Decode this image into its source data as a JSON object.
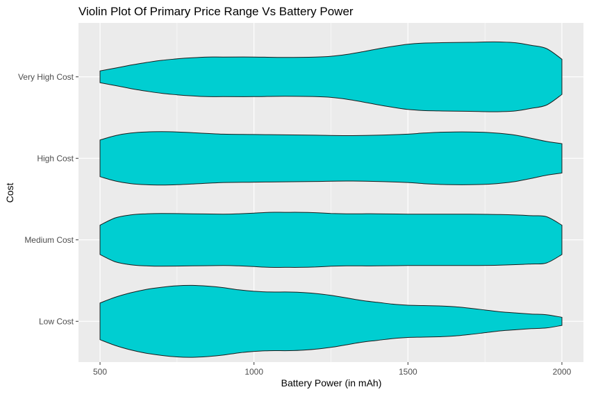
{
  "chart_data": {
    "type": "violin",
    "title": "Violin Plot Of Primary Price Range Vs Battery Power",
    "xlabel": "Battery Power (in mAh)",
    "ylabel": "Cost",
    "xlim": [
      430,
      2070
    ],
    "x_ticks": [
      500,
      1000,
      1500,
      2000
    ],
    "x_tick_labels": [
      "500",
      "1000",
      "1500",
      "2000"
    ],
    "categories": [
      "Low Cost",
      "Medium Cost",
      "High Cost",
      "Very High Cost"
    ],
    "fill_color": "#00CED1",
    "outline_color": "#1a1a1a",
    "panel_color": "#EBEBEB",
    "grid_color": "#FFFFFF",
    "grid": true,
    "legend": "none",
    "violins": [
      {
        "category": "Low Cost",
        "x_range": [
          501,
          1999
        ],
        "profile": [
          [
            500,
            0.5
          ],
          [
            550,
            0.66
          ],
          [
            600,
            0.78
          ],
          [
            650,
            0.87
          ],
          [
            700,
            0.93
          ],
          [
            750,
            0.97
          ],
          [
            800,
            0.98
          ],
          [
            850,
            0.96
          ],
          [
            900,
            0.92
          ],
          [
            950,
            0.86
          ],
          [
            1000,
            0.82
          ],
          [
            1050,
            0.8
          ],
          [
            1100,
            0.8
          ],
          [
            1150,
            0.79
          ],
          [
            1200,
            0.76
          ],
          [
            1250,
            0.71
          ],
          [
            1300,
            0.64
          ],
          [
            1350,
            0.57
          ],
          [
            1400,
            0.52
          ],
          [
            1450,
            0.47
          ],
          [
            1500,
            0.44
          ],
          [
            1550,
            0.43
          ],
          [
            1600,
            0.42
          ],
          [
            1650,
            0.4
          ],
          [
            1700,
            0.36
          ],
          [
            1750,
            0.31
          ],
          [
            1800,
            0.26
          ],
          [
            1850,
            0.23
          ],
          [
            1900,
            0.2
          ],
          [
            1950,
            0.18
          ],
          [
            2000,
            0.11
          ]
        ]
      },
      {
        "category": "Medium Cost",
        "x_range": [
          501,
          2000
        ],
        "profile": [
          [
            500,
            0.4
          ],
          [
            550,
            0.6
          ],
          [
            600,
            0.68
          ],
          [
            650,
            0.71
          ],
          [
            700,
            0.72
          ],
          [
            800,
            0.71
          ],
          [
            900,
            0.7
          ],
          [
            950,
            0.71
          ],
          [
            1000,
            0.73
          ],
          [
            1050,
            0.75
          ],
          [
            1100,
            0.75
          ],
          [
            1150,
            0.75
          ],
          [
            1200,
            0.74
          ],
          [
            1250,
            0.72
          ],
          [
            1300,
            0.71
          ],
          [
            1350,
            0.71
          ],
          [
            1400,
            0.71
          ],
          [
            1500,
            0.7
          ],
          [
            1600,
            0.7
          ],
          [
            1700,
            0.7
          ],
          [
            1800,
            0.69
          ],
          [
            1900,
            0.66
          ],
          [
            1950,
            0.63
          ],
          [
            2000,
            0.4
          ]
        ]
      },
      {
        "category": "High Cost",
        "x_range": [
          503,
          1999
        ],
        "profile": [
          [
            500,
            0.5
          ],
          [
            550,
            0.62
          ],
          [
            600,
            0.69
          ],
          [
            650,
            0.72
          ],
          [
            700,
            0.73
          ],
          [
            750,
            0.72
          ],
          [
            800,
            0.7
          ],
          [
            900,
            0.66
          ],
          [
            1000,
            0.65
          ],
          [
            1100,
            0.64
          ],
          [
            1200,
            0.63
          ],
          [
            1300,
            0.62
          ],
          [
            1400,
            0.63
          ],
          [
            1500,
            0.66
          ],
          [
            1550,
            0.69
          ],
          [
            1600,
            0.71
          ],
          [
            1650,
            0.72
          ],
          [
            1700,
            0.72
          ],
          [
            1750,
            0.71
          ],
          [
            1800,
            0.68
          ],
          [
            1850,
            0.63
          ],
          [
            1900,
            0.55
          ],
          [
            1950,
            0.46
          ],
          [
            2000,
            0.4
          ]
        ]
      },
      {
        "category": "Very High Cost",
        "x_range": [
          500,
          2000
        ],
        "profile": [
          [
            500,
            0.16
          ],
          [
            550,
            0.24
          ],
          [
            600,
            0.32
          ],
          [
            650,
            0.39
          ],
          [
            700,
            0.45
          ],
          [
            750,
            0.49
          ],
          [
            800,
            0.52
          ],
          [
            850,
            0.54
          ],
          [
            900,
            0.54
          ],
          [
            1000,
            0.54
          ],
          [
            1100,
            0.53
          ],
          [
            1200,
            0.54
          ],
          [
            1250,
            0.56
          ],
          [
            1300,
            0.61
          ],
          [
            1350,
            0.68
          ],
          [
            1400,
            0.76
          ],
          [
            1450,
            0.83
          ],
          [
            1500,
            0.89
          ],
          [
            1550,
            0.92
          ],
          [
            1600,
            0.93
          ],
          [
            1700,
            0.94
          ],
          [
            1750,
            0.95
          ],
          [
            1800,
            0.95
          ],
          [
            1850,
            0.93
          ],
          [
            1900,
            0.86
          ],
          [
            1950,
            0.77
          ],
          [
            2000,
            0.48
          ]
        ]
      }
    ]
  }
}
